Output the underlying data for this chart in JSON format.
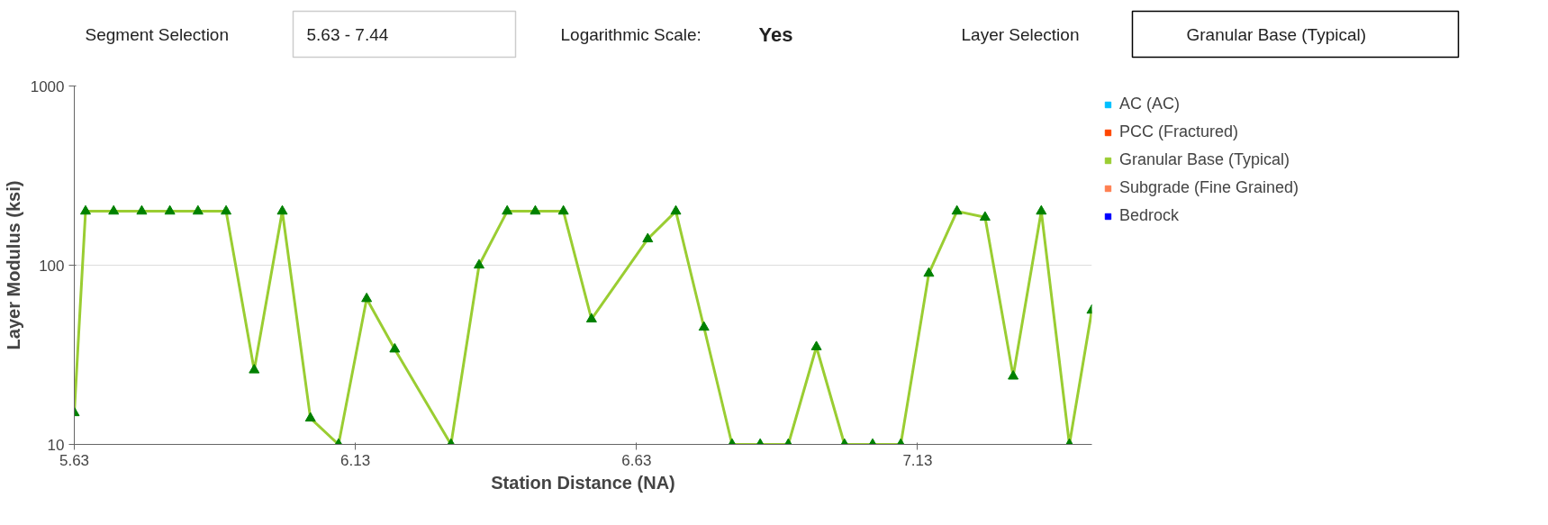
{
  "chart_data": {
    "type": "line",
    "xlabel": "Station Distance (NA)",
    "ylabel": "Layer Modulus (ksi)",
    "annotations": [
      "Segment Selection",
      "5.63 - 7.44",
      "Logarithmic Scale:",
      "Yes",
      "Layer Selection",
      "Granular Base (Typical)"
    ],
    "xlim": [
      5.63,
      7.44
    ],
    "xticks": [
      5.63,
      6.13,
      6.63,
      7.13
    ],
    "ylim": [
      10,
      1000
    ],
    "yticks": [
      10,
      100,
      1000
    ],
    "log": true,
    "grid": "y",
    "legend": "top right",
    "marker": "triangle",
    "line_style": "solid",
    "series": [
      {
        "name": "AC (AC)",
        "color": "#00bfff"
      },
      {
        "name": "PCC (Fractured)",
        "color": "#ff4500"
      },
      {
        "name": "Granular Base (Typical)",
        "color": "#9acd32",
        "colors": [
          "#008000",
          "#008000",
          "#008000",
          "#008000",
          "#008000",
          "#008000",
          "#008000",
          "#008000",
          "#008000",
          "#008000",
          "#008000",
          "#008000",
          "#008000",
          "#008000",
          "#008000",
          "#008000",
          "#008000",
          "#008000",
          "#008000",
          "#008000",
          "#008000",
          "#008000",
          "#008000",
          "#008000",
          "#008000",
          "#008000",
          "#008000",
          "#008000",
          "#008000",
          "#008000",
          "#008000",
          "#008000",
          "#008000",
          "#008000",
          "#008000",
          "#008000"
        ],
        "x": [
          5.63,
          5.65,
          5.7,
          5.75,
          5.8,
          5.85,
          5.9,
          5.95,
          6.0,
          6.05,
          6.1,
          6.15,
          6.2,
          6.3,
          6.35,
          6.4,
          6.45,
          6.5,
          6.55,
          6.65,
          6.7,
          6.75,
          6.8,
          6.85,
          6.9,
          6.95,
          7.0,
          7.05,
          7.1,
          7.15,
          7.2,
          7.25,
          7.3,
          7.35,
          7.4,
          7.44
        ],
        "values": [
          15,
          200,
          200,
          200,
          200,
          200,
          200,
          26,
          200,
          14,
          10,
          65,
          34,
          10,
          100,
          200,
          200,
          200,
          50,
          140,
          200,
          45,
          10,
          10,
          10,
          35,
          10,
          10,
          10,
          90,
          200,
          185,
          24,
          200,
          10,
          56
        ]
      },
      {
        "name": "Subgrade (Fine Grained)",
        "color": "#ff7f50"
      },
      {
        "name": "Bedrock",
        "color": "#0000ff"
      }
    ]
  }
}
